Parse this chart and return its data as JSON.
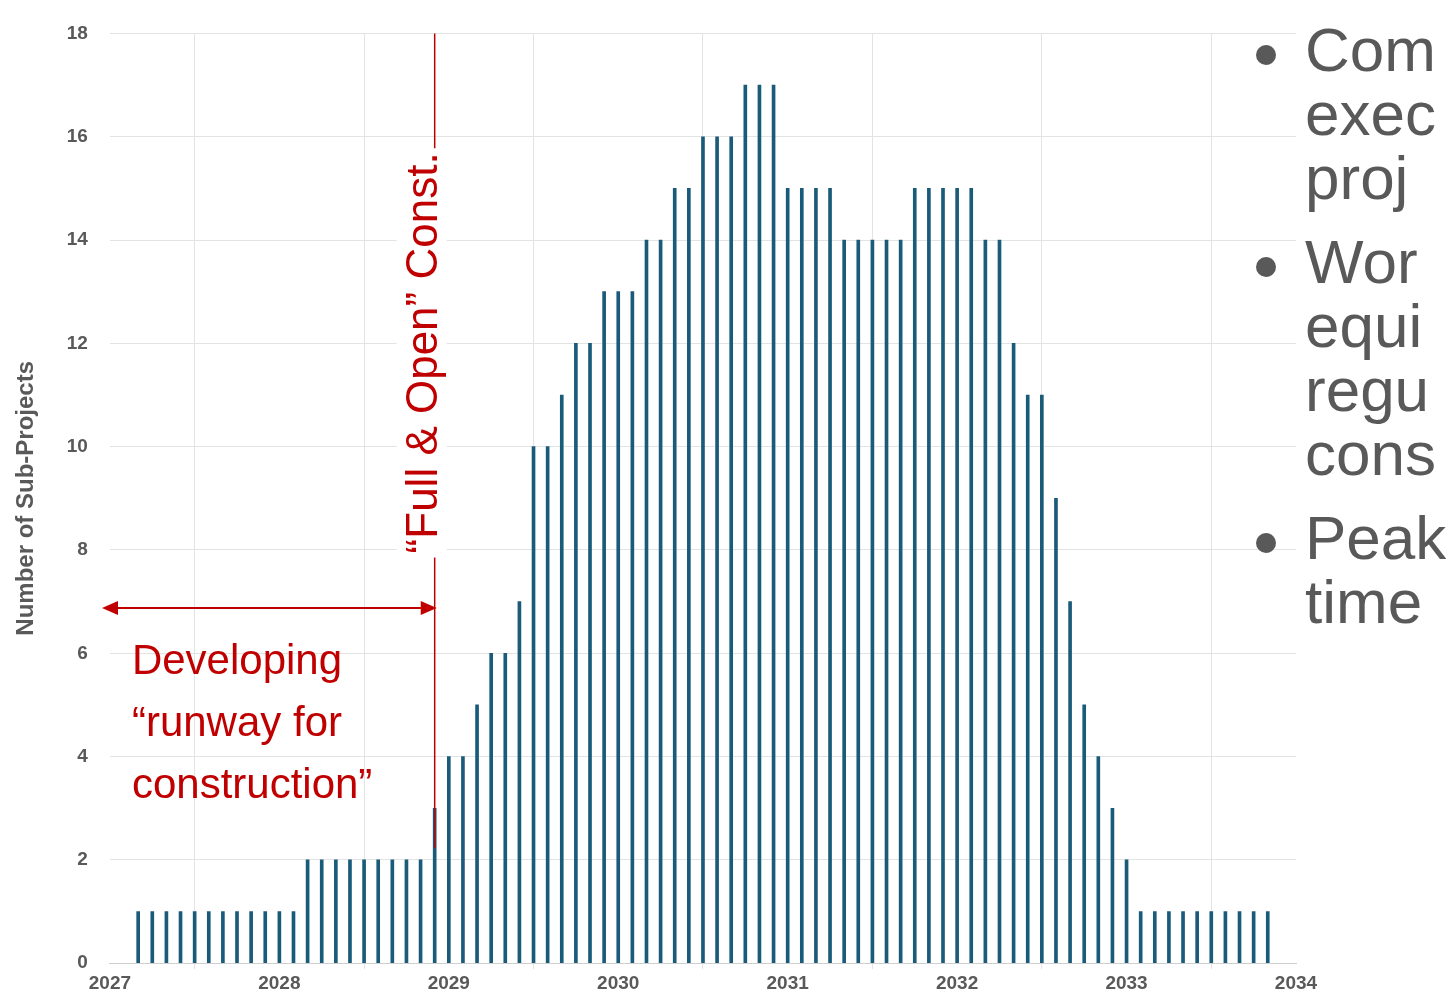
{
  "chart_data": {
    "type": "bar",
    "ylabel": "Number of Sub-Projects",
    "x": [
      "2027-03",
      "2027-04",
      "2027-05",
      "2027-06",
      "2027-07",
      "2027-08",
      "2027-09",
      "2027-10",
      "2027-11",
      "2027-12",
      "2028-01",
      "2028-02",
      "2028-03",
      "2028-04",
      "2028-05",
      "2028-06",
      "2028-07",
      "2028-08",
      "2028-09",
      "2028-10",
      "2028-11",
      "2028-12",
      "2029-01",
      "2029-02",
      "2029-03",
      "2029-04",
      "2029-05",
      "2029-06",
      "2029-07",
      "2029-08",
      "2029-09",
      "2029-10",
      "2029-11",
      "2029-12",
      "2030-01",
      "2030-02",
      "2030-03",
      "2030-04",
      "2030-05",
      "2030-06",
      "2030-07",
      "2030-08",
      "2030-09",
      "2030-10",
      "2030-11",
      "2030-12",
      "2031-01",
      "2031-02",
      "2031-03",
      "2031-04",
      "2031-05",
      "2031-06",
      "2031-07",
      "2031-08",
      "2031-09",
      "2031-10",
      "2031-11",
      "2031-12",
      "2032-01",
      "2032-02",
      "2032-03",
      "2032-04",
      "2032-05",
      "2032-06",
      "2032-07",
      "2032-08",
      "2032-09",
      "2032-10",
      "2032-11",
      "2032-12",
      "2033-01",
      "2033-02",
      "2033-03",
      "2033-04",
      "2033-05",
      "2033-06",
      "2033-07",
      "2033-08",
      "2033-09",
      "2033-10",
      "2033-11"
    ],
    "values": [
      1,
      1,
      1,
      1,
      1,
      1,
      1,
      1,
      1,
      1,
      1,
      1,
      2,
      2,
      2,
      2,
      2,
      2,
      2,
      2,
      2,
      3,
      4,
      4,
      5,
      6,
      6,
      7,
      10,
      10,
      11,
      12,
      12,
      13,
      13,
      13,
      14,
      14,
      15,
      15,
      16,
      16,
      16,
      17,
      17,
      17,
      15,
      15,
      15,
      15,
      14,
      14,
      14,
      14,
      14,
      15,
      15,
      15,
      15,
      15,
      14,
      14,
      12,
      11,
      11,
      9,
      7,
      5,
      4,
      3,
      2,
      1,
      1,
      1,
      1,
      1,
      1,
      1,
      1,
      1,
      1
    ],
    "color": "#1a5b7a",
    "xlim": [
      "2027",
      "2034"
    ],
    "xticks": [
      {
        "value": "2027",
        "label": "2027"
      },
      {
        "value": "2028",
        "label": "2028"
      },
      {
        "value": "2029",
        "label": "2029"
      },
      {
        "value": "2030",
        "label": "2030"
      },
      {
        "value": "2031",
        "label": "2031"
      },
      {
        "value": "2032",
        "label": "2032"
      },
      {
        "value": "2033",
        "label": "2033"
      },
      {
        "value": "2034",
        "label": "2034"
      }
    ],
    "ylim": [
      0,
      18
    ],
    "yticks": [
      0,
      2,
      4,
      6,
      8,
      10,
      12,
      14,
      16,
      18
    ],
    "grid": true,
    "legend": false,
    "ref_lines": [
      {
        "axis": "x",
        "value": "2028-12",
        "label": "“Full & Open” Const.",
        "color": "#c00000"
      }
    ],
    "annotations": [
      "Developing “runway for construction”",
      "Com\nexec\nproj",
      "Wor\nequi\nregu\ncons",
      "Peak\ntime"
    ]
  }
}
